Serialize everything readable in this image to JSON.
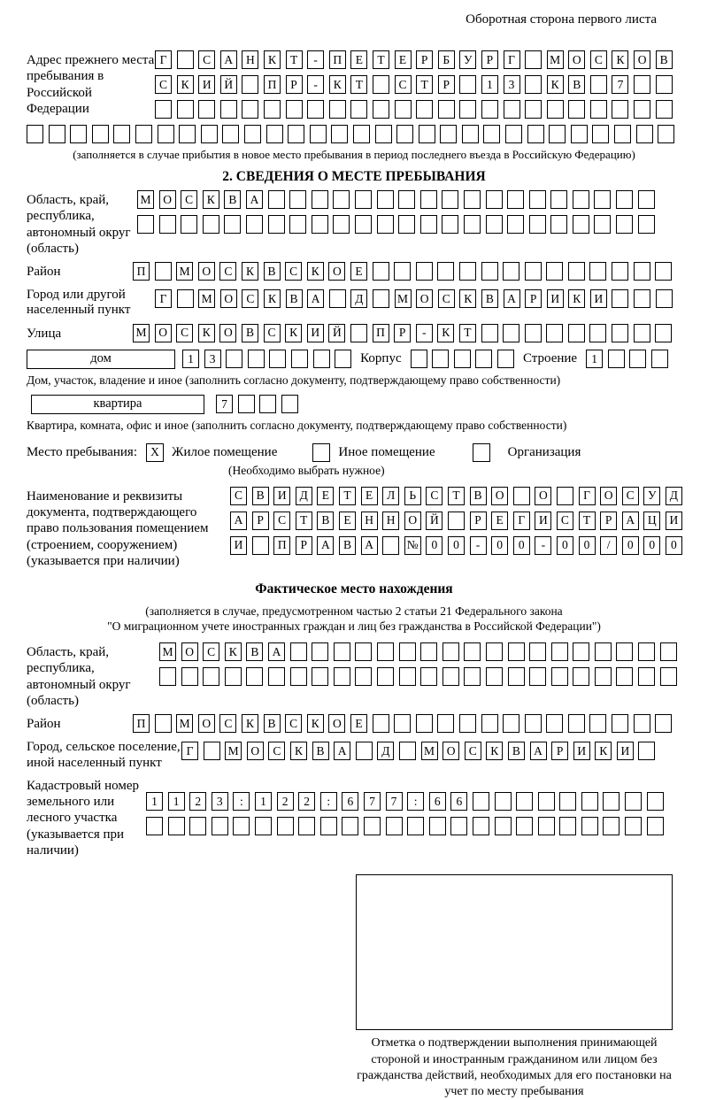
{
  "page": {
    "header_note": "Оборотная сторона первого листа"
  },
  "prev_address": {
    "label": "Адрес прежнего места пребывания в Российской Федерации",
    "rows": [
      {
        "text": "Г САНКТ-ПЕТЕРБУРГ МОСКОВ",
        "cells": 24
      },
      {
        "text": "СКИЙ ПР-КТ СТР 13 КВ 7",
        "cells": 24
      },
      {
        "text": "",
        "cells": 24
      }
    ],
    "overflow_row": {
      "text": "",
      "cells": 30
    },
    "note": "(заполняется в случае прибытия в новое место пребывания в период последнего въезда в Российскую Федерацию)"
  },
  "section2": {
    "title": "2. СВЕДЕНИЯ О МЕСТЕ ПРЕБЫВАНИЯ",
    "region": {
      "label": "Область, край, республика, автономный округ (область)",
      "rows": [
        {
          "text": "МОСКВА",
          "cells": 24
        },
        {
          "text": "",
          "cells": 24
        }
      ]
    },
    "district": {
      "label": "Район",
      "row": {
        "text": "П МОСКВСКОЕ",
        "cells": 25
      }
    },
    "city": {
      "label": "Город или другой населенный пункт",
      "row": {
        "text": "Г МОСКВА Д МОСКВАРИКИ",
        "cells": 24
      }
    },
    "street": {
      "label": "Улица",
      "row": {
        "text": "МОСКОВСКИЙ ПР-КТ",
        "cells": 25
      }
    },
    "house": {
      "type_value": "дом",
      "number_row": {
        "text": "13",
        "cells": 8
      },
      "korpus_label": "Корпус",
      "korpus_row": {
        "text": "",
        "cells": 5
      },
      "stroenie_label": "Строение",
      "stroenie_row": {
        "text": "1",
        "cells": 4
      },
      "note": "Дом, участок, владение и иное (заполнить согласно документу, подтверждающему право собственности)"
    },
    "apartment": {
      "type_value": "квартира",
      "number_row": {
        "text": "7",
        "cells": 4
      },
      "note": "Квартира, комната, офис и иное (заполнить согласно документу, подтверждающему право собственности)"
    },
    "stay_type": {
      "label": "Место пребывания:",
      "options": [
        {
          "label": "Жилое помещение",
          "checked": true
        },
        {
          "label": "Иное помещение",
          "checked": false
        },
        {
          "label": "Организация",
          "checked": false
        }
      ],
      "note": "(Необходимо выбрать нужное)"
    },
    "document": {
      "label": "Наименование и реквизиты документа, подтверждающего право пользования помещением (строением, сооружением) (указывается при наличии)",
      "rows": [
        {
          "text": "СВИДЕТЕЛЬСТВО О ГОСУД",
          "cells": 21
        },
        {
          "text": "АРСТВЕННОЙ РЕГИСТРАЦИ",
          "cells": 21
        },
        {
          "text": "И ПРАВА №00-00-00/000",
          "cells": 21
        }
      ]
    }
  },
  "actual_location": {
    "title": "Фактическое место нахождения",
    "note_line1": "(заполняется в случае, предусмотренном частью 2 статьи 21 Федерального закона",
    "note_line2": "\"О миграционном учете иностранных граждан и лиц без гражданства в Российской Федерации\")",
    "region": {
      "label": "Область, край, республика, автономный округ (область)",
      "rows": [
        {
          "text": "МОСКВА",
          "cells": 24
        },
        {
          "text": "",
          "cells": 24
        }
      ]
    },
    "district": {
      "label": "Район",
      "row": {
        "text": "П МОСКВСКОЕ",
        "cells": 25
      }
    },
    "city": {
      "label": "Город, сельское поселение, иной населенный пункт",
      "row": {
        "text": "Г МОСКВА Д МОСКВАРИКИ",
        "cells": 22
      }
    },
    "cadastral": {
      "label": "Кадастровый номер земельного или лесного участка (указывается при наличии)",
      "rows": [
        {
          "text": "1123:122:677:66",
          "cells": 24
        },
        {
          "text": "",
          "cells": 24
        }
      ]
    },
    "mark_caption": "Отметка о подтверждении выполнения принимающей стороной и иностранным гражданином или лицом без гражданства действий, необходимых для его постановки на учет по месту пребывания"
  }
}
